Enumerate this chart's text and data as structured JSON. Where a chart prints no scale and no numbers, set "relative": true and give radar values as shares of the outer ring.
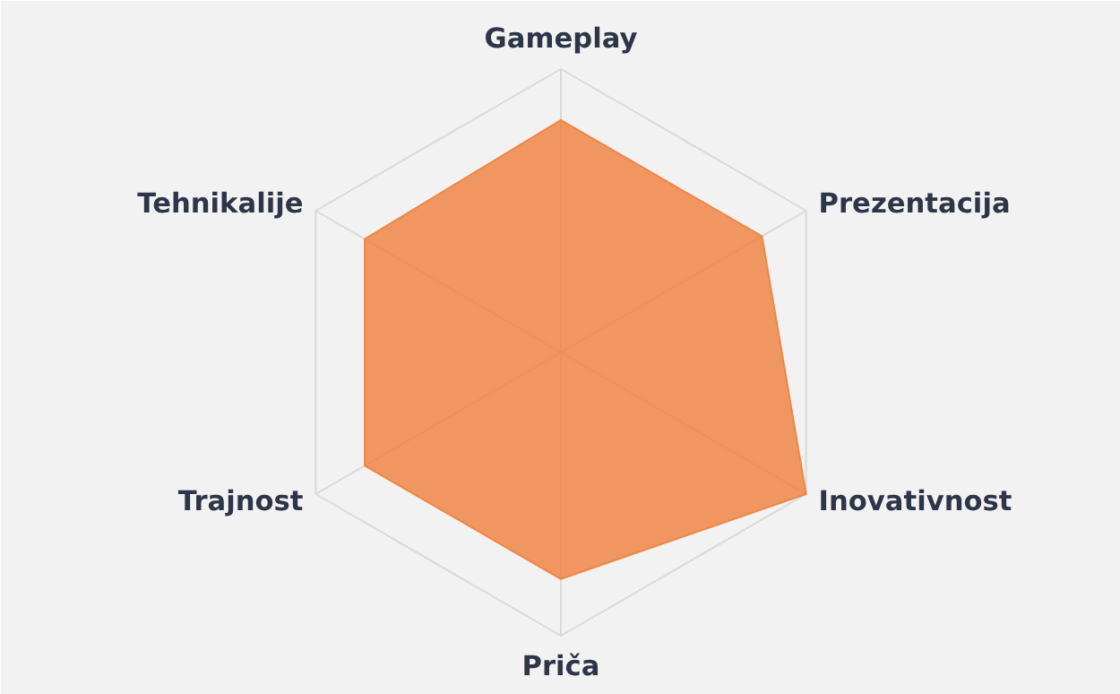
{
  "chart_data": {
    "type": "radar",
    "relative": true,
    "categories": [
      "Gameplay",
      "Prezentacija",
      "Inovativnost",
      "Priča",
      "Trajnost",
      "Tehnikalije"
    ],
    "series": [
      {
        "color": "#ef7f3c",
        "values": [
          0.82,
          0.82,
          1.0,
          0.8,
          0.8,
          0.8
        ]
      }
    ],
    "grid": true
  }
}
